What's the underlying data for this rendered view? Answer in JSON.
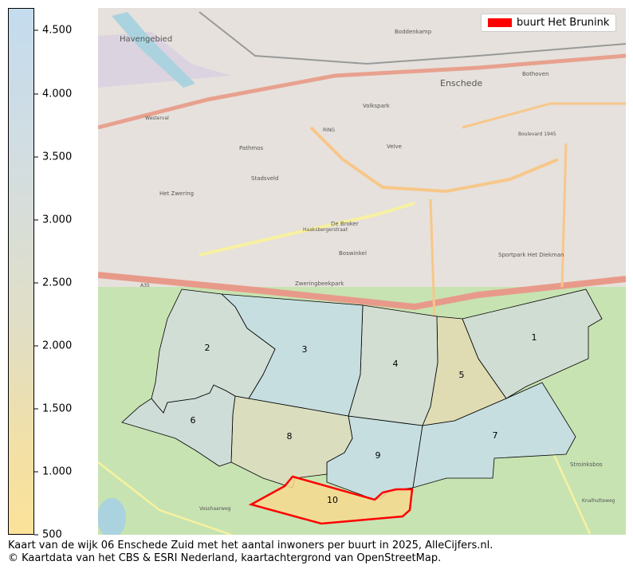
{
  "colorbar": {
    "min": 500,
    "max": 4680,
    "ticks": [
      "4.500",
      "4.000",
      "3.500",
      "3.000",
      "2.500",
      "2.000",
      "1.500",
      "1.000",
      "500"
    ],
    "tick_values": [
      4500,
      4000,
      3500,
      3000,
      2500,
      2000,
      1500,
      1000,
      500
    ],
    "color_low": "#fce29a",
    "color_high": "#c4dcee"
  },
  "legend": {
    "label": "buurt Het Brunink",
    "color": "#ff0000"
  },
  "map": {
    "place_labels": [
      "Havengebied",
      "Enschede",
      "Stadsveld",
      "Boswinkel",
      "Boddenkamp",
      "Bothoven",
      "Volkspark",
      "Pathmos",
      "Velve",
      "Het Zwering",
      "De Broker",
      "Sportpark Het Diekman",
      "Zweringbeekpark",
      "Stroinksbos"
    ],
    "road_labels": [
      "A35",
      "RING",
      "Westerval",
      "Boulevard 1945",
      "Haaksbergerstraat",
      "Vosshaarweg",
      "Knalhutteweg"
    ],
    "buurten": [
      {
        "label": "1",
        "color": "#d2dbd9"
      },
      {
        "label": "2",
        "color": "#d3dcdf"
      },
      {
        "label": "3",
        "color": "#c6dcea"
      },
      {
        "label": "4",
        "color": "#d4dcd9"
      },
      {
        "label": "5",
        "color": "#e5dab4"
      },
      {
        "label": "6",
        "color": "#d0dbe0"
      },
      {
        "label": "7",
        "color": "#c6dcea"
      },
      {
        "label": "8",
        "color": "#dfdcc2"
      },
      {
        "label": "9",
        "color": "#c6dcea"
      },
      {
        "label": "10",
        "color": "#f7d98f",
        "highlight": true
      }
    ]
  },
  "caption": {
    "line1": "Kaart van de wijk 06 Enschede Zuid met het aantal inwoners per buurt in 2025, AlleCijfers.nl.",
    "line2": "© Kaartdata van het CBS & ESRI Nederland, kaartachtergrond van OpenStreetMap."
  }
}
